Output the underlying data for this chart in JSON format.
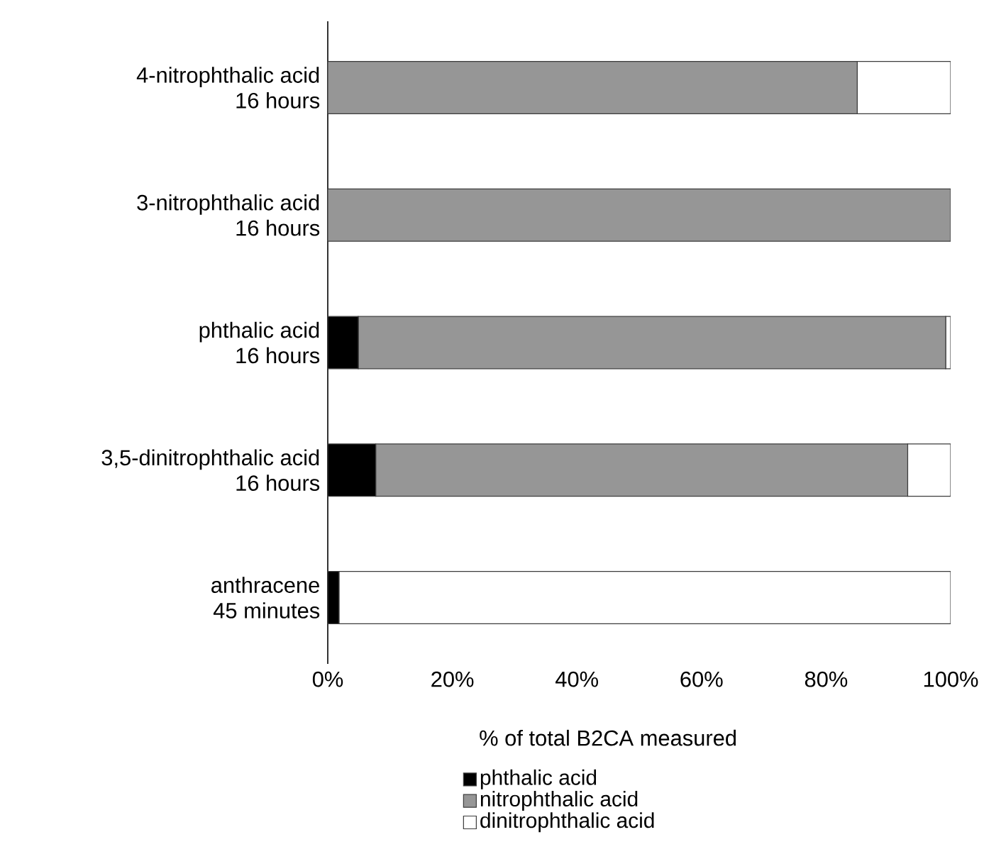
{
  "chart_data": {
    "type": "bar",
    "orientation": "horizontal",
    "stacked": true,
    "xlabel": "% of total B2CA measured",
    "categories": [
      "4-nitrophthalic acid\n16 hours",
      "3-nitrophthalic acid\n16 hours",
      "phthalic acid\n16 hours",
      "3,5-dinitrophthalic acid\n16 hours",
      "anthracene\n45 minutes"
    ],
    "series": [
      {
        "name": "phthalic acid",
        "color": "#000000",
        "values": [
          0,
          0,
          4.9,
          7.7,
          1.8
        ]
      },
      {
        "name": "nitrophthalic acid",
        "color": "#969696",
        "values": [
          85.0,
          100,
          94.3,
          85.4,
          0
        ]
      },
      {
        "name": "dinitrophthalic acid",
        "color": "#ffffff",
        "values": [
          15.0,
          0,
          0.8,
          6.9,
          98.2
        ]
      }
    ],
    "xlim": [
      0,
      100
    ],
    "xticks": [
      {
        "value": 0,
        "label": "0%"
      },
      {
        "value": 20,
        "label": "20%"
      },
      {
        "value": 40,
        "label": "40%"
      },
      {
        "value": 60,
        "label": "60%"
      },
      {
        "value": 80,
        "label": "80%"
      },
      {
        "value": 100,
        "label": "100%"
      }
    ],
    "legend": "bottom"
  }
}
